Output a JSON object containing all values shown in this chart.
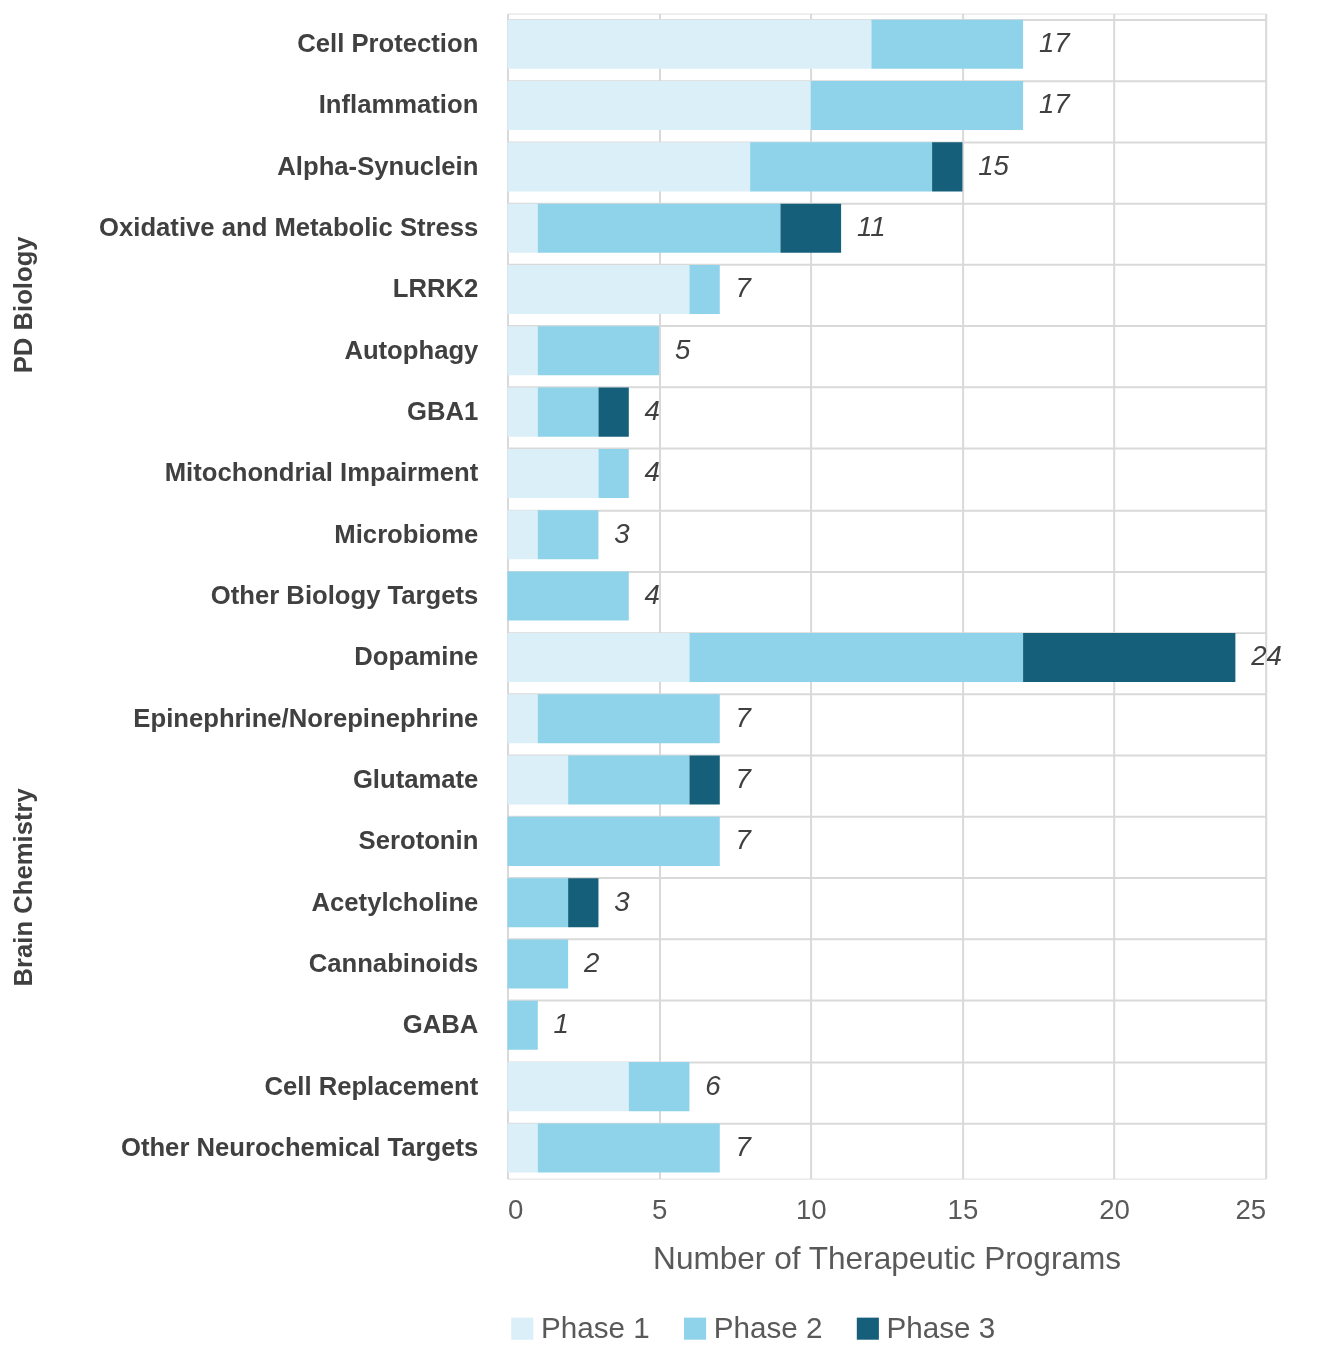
{
  "chart_data": {
    "type": "bar",
    "orientation": "horizontal",
    "stacked": true,
    "xlabel": "Number of Therapeutic Programs",
    "categories": [
      "Cell Protection",
      "Inflammation",
      "Alpha-Synuclein",
      "Oxidative and Metabolic Stress",
      "LRRK2",
      "Autophagy",
      "GBA1",
      "Mitochondrial Impairment",
      "Microbiome",
      "Other  Biology Targets",
      "Dopamine",
      "Epinephrine/Norepinephrine",
      "Glutamate",
      "Serotonin",
      "Acetylcholine",
      "Cannabinoids",
      "GABA",
      "Cell Replacement",
      "Other Neurochemical Targets"
    ],
    "series": [
      {
        "name": "Phase 1",
        "color": "#daeff7",
        "values": [
          12,
          10,
          8,
          1,
          6,
          1,
          1,
          3,
          1,
          0,
          6,
          1,
          2,
          0,
          0,
          0,
          0,
          4,
          1
        ]
      },
      {
        "name": "Phase 2",
        "color": "#8fd3ea",
        "values": [
          5,
          7,
          6,
          8,
          1,
          4,
          2,
          1,
          2,
          4,
          11,
          6,
          4,
          7,
          2,
          2,
          1,
          2,
          6
        ]
      },
      {
        "name": "Phase 3",
        "color": "#155f7a",
        "values": [
          0,
          0,
          1,
          2,
          0,
          0,
          1,
          0,
          0,
          0,
          7,
          0,
          1,
          0,
          1,
          0,
          0,
          0,
          0
        ]
      }
    ],
    "totals": [
      "17",
      "17",
      "15",
      "11",
      "7",
      "5",
      "4",
      "4",
      "3",
      "4",
      "24",
      "7",
      "7",
      "7",
      "3",
      "2",
      "1",
      "6",
      "7"
    ],
    "xlim": [
      0,
      25
    ],
    "xticks": [
      0,
      5,
      10,
      15,
      20,
      25
    ],
    "grid": true,
    "legend": "bottom",
    "annotations": [
      "PD Biology",
      "Brain Chemistry"
    ]
  }
}
